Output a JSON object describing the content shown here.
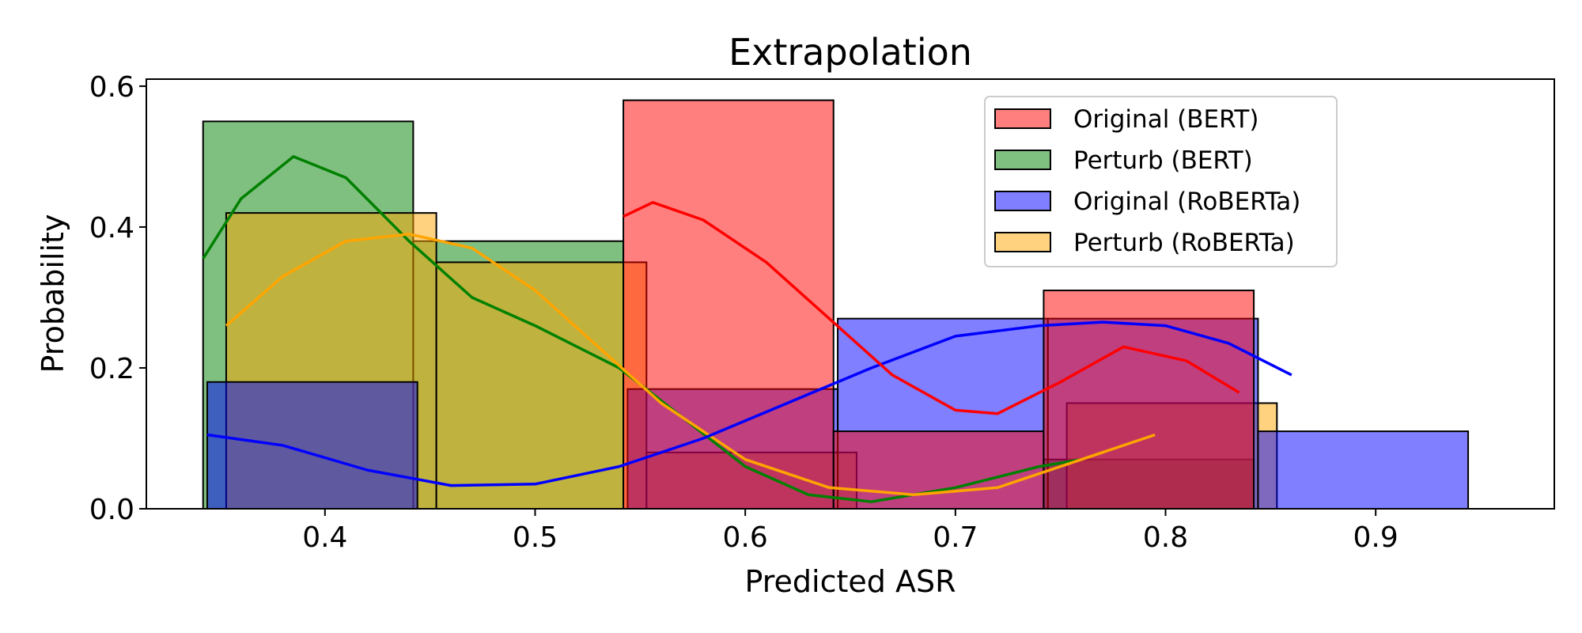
{
  "chart_data": {
    "type": "histogram",
    "title": "Extrapolation",
    "xlabel": "Predicted ASR",
    "ylabel": "Probability",
    "xlim": [
      0.315,
      0.985
    ],
    "ylim": [
      0.0,
      0.61
    ],
    "xticks": [
      0.4,
      0.5,
      0.6,
      0.7,
      0.8,
      0.9
    ],
    "xtick_labels": [
      "0.4",
      "0.5",
      "0.6",
      "0.7",
      "0.8",
      "0.9"
    ],
    "yticks": [
      0.0,
      0.2,
      0.4,
      0.6
    ],
    "ytick_labels": [
      "0.0",
      "0.2",
      "0.4",
      "0.6"
    ],
    "grid": false,
    "legend_position": "top-right",
    "series": [
      {
        "name": "Perturb (BERT)",
        "color": "#008000",
        "bars": [
          {
            "x0": 0.342,
            "x1": 0.442,
            "value": 0.55
          },
          {
            "x0": 0.442,
            "x1": 0.542,
            "value": 0.38
          },
          {
            "x0": 0.542,
            "x1": 0.642,
            "value": 0.0
          },
          {
            "x0": 0.642,
            "x1": 0.742,
            "value": 0.0
          },
          {
            "x0": 0.742,
            "x1": 0.842,
            "value": 0.07
          }
        ],
        "kde": [
          [
            0.342,
            0.355
          ],
          [
            0.36,
            0.44
          ],
          [
            0.385,
            0.5
          ],
          [
            0.41,
            0.47
          ],
          [
            0.44,
            0.38
          ],
          [
            0.47,
            0.3
          ],
          [
            0.5,
            0.26
          ],
          [
            0.54,
            0.2
          ],
          [
            0.57,
            0.13
          ],
          [
            0.6,
            0.06
          ],
          [
            0.63,
            0.02
          ],
          [
            0.66,
            0.01
          ],
          [
            0.7,
            0.03
          ],
          [
            0.74,
            0.06
          ],
          [
            0.76,
            0.07
          ]
        ]
      },
      {
        "name": "Perturb (RoBERTa)",
        "color": "#FFA500",
        "bars": [
          {
            "x0": 0.353,
            "x1": 0.453,
            "value": 0.42
          },
          {
            "x0": 0.453,
            "x1": 0.553,
            "value": 0.35
          },
          {
            "x0": 0.553,
            "x1": 0.653,
            "value": 0.08
          },
          {
            "x0": 0.653,
            "x1": 0.753,
            "value": 0.0
          },
          {
            "x0": 0.753,
            "x1": 0.853,
            "value": 0.15
          }
        ],
        "kde": [
          [
            0.353,
            0.26
          ],
          [
            0.38,
            0.33
          ],
          [
            0.41,
            0.38
          ],
          [
            0.44,
            0.39
          ],
          [
            0.47,
            0.37
          ],
          [
            0.5,
            0.31
          ],
          [
            0.53,
            0.23
          ],
          [
            0.56,
            0.15
          ],
          [
            0.6,
            0.07
          ],
          [
            0.64,
            0.03
          ],
          [
            0.68,
            0.02
          ],
          [
            0.72,
            0.03
          ],
          [
            0.76,
            0.07
          ],
          [
            0.795,
            0.105
          ]
        ]
      },
      {
        "name": "Original (RoBERTa)",
        "color": "#0000FF",
        "bars": [
          {
            "x0": 0.344,
            "x1": 0.444,
            "value": 0.18
          },
          {
            "x0": 0.444,
            "x1": 0.544,
            "value": 0.0
          },
          {
            "x0": 0.544,
            "x1": 0.644,
            "value": 0.17
          },
          {
            "x0": 0.644,
            "x1": 0.744,
            "value": 0.27
          },
          {
            "x0": 0.744,
            "x1": 0.844,
            "value": 0.27
          },
          {
            "x0": 0.844,
            "x1": 0.944,
            "value": 0.11
          }
        ],
        "kde": [
          [
            0.344,
            0.105
          ],
          [
            0.38,
            0.09
          ],
          [
            0.42,
            0.055
          ],
          [
            0.46,
            0.033
          ],
          [
            0.5,
            0.035
          ],
          [
            0.54,
            0.06
          ],
          [
            0.58,
            0.1
          ],
          [
            0.62,
            0.15
          ],
          [
            0.66,
            0.2
          ],
          [
            0.7,
            0.245
          ],
          [
            0.74,
            0.26
          ],
          [
            0.77,
            0.265
          ],
          [
            0.8,
            0.26
          ],
          [
            0.83,
            0.235
          ],
          [
            0.86,
            0.19
          ]
        ]
      },
      {
        "name": "Original (BERT)",
        "color": "#FF0000",
        "bars": [
          {
            "x0": 0.542,
            "x1": 0.642,
            "value": 0.58
          },
          {
            "x0": 0.642,
            "x1": 0.742,
            "value": 0.11
          },
          {
            "x0": 0.742,
            "x1": 0.842,
            "value": 0.31
          }
        ],
        "kde": [
          [
            0.542,
            0.415
          ],
          [
            0.556,
            0.435
          ],
          [
            0.58,
            0.41
          ],
          [
            0.61,
            0.35
          ],
          [
            0.64,
            0.27
          ],
          [
            0.67,
            0.19
          ],
          [
            0.7,
            0.14
          ],
          [
            0.72,
            0.135
          ],
          [
            0.75,
            0.18
          ],
          [
            0.78,
            0.23
          ],
          [
            0.81,
            0.21
          ],
          [
            0.835,
            0.165
          ]
        ]
      }
    ],
    "legend": [
      {
        "label": "Original (BERT)",
        "color": "#FF0000"
      },
      {
        "label": "Perturb (BERT)",
        "color": "#008000"
      },
      {
        "label": "Original (RoBERTa)",
        "color": "#0000FF"
      },
      {
        "label": "Perturb (RoBERTa)",
        "color": "#FFA500"
      }
    ]
  }
}
